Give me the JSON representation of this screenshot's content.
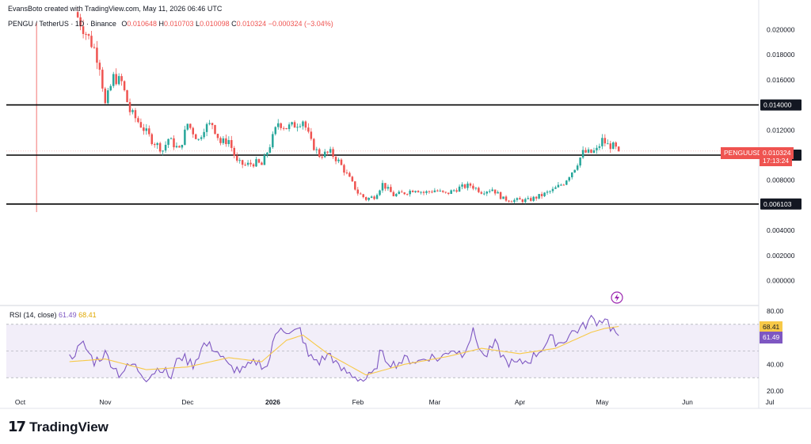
{
  "header": {
    "credit": "EvansBoto created with TradingView.com, May 11, 2026 06:46 UTC",
    "symbol": "PENGU / TetherUS · 1D · Binance",
    "o_label": "O",
    "o_value": "0.010648",
    "h_label": "H",
    "h_value": "0.010703",
    "l_label": "L",
    "l_value": "0.010098",
    "c_label": "C",
    "c_value": "0.010324",
    "change": "−0.000324 (−3.04%)"
  },
  "price_tag": {
    "symbol": "PENGUUSDT",
    "price": "0.010324",
    "countdown": "17:13:24"
  },
  "rsi": {
    "label": "RSI (14, close)",
    "value": "61.49",
    "ma_value": "68.41"
  },
  "brand": {
    "name": "TradingView"
  },
  "colors": {
    "up": "#26a69a",
    "down": "#ef5350",
    "rsi": "#7e57c2",
    "rsi_ma": "#f7c948",
    "level": "#000000"
  },
  "chart_data": [
    {
      "type": "candlestick",
      "x_tick_labels": [
        "Oct",
        "Nov",
        "Dec",
        "2026",
        "Feb",
        "Mar",
        "Apr",
        "May",
        "Jun",
        "Jul"
      ],
      "y_tick_labels": [
        "0.020000",
        "0.018000",
        "0.016000",
        "0.014000",
        "0.012000",
        "0.010000",
        "0.008000",
        "0.006103",
        "0.004000",
        "0.002000",
        "0.000000"
      ],
      "ylim": [
        -0.0006,
        0.0206
      ],
      "horizontal_levels": [
        "0.014000",
        "0.010000",
        "0.006103"
      ],
      "current_price": 0.010324,
      "anchors": [
        [
          "2025-10-26",
          0.021
        ],
        [
          "2025-11-01",
          0.0185
        ],
        [
          "2025-11-03",
          0.0172
        ],
        [
          "2025-11-05",
          0.014
        ],
        [
          "2025-11-08",
          0.0162
        ],
        [
          "2025-11-11",
          0.0158
        ],
        [
          "2025-11-14",
          0.0135
        ],
        [
          "2025-11-18",
          0.0124
        ],
        [
          "2025-11-22",
          0.0112
        ],
        [
          "2025-11-26",
          0.0104
        ],
        [
          "2025-11-28",
          0.0113
        ],
        [
          "2025-12-02",
          0.0104
        ],
        [
          "2025-12-05",
          0.0125
        ],
        [
          "2025-12-09",
          0.0112
        ],
        [
          "2025-12-11",
          0.0122
        ],
        [
          "2025-12-14",
          0.0125
        ],
        [
          "2025-12-17",
          0.011
        ],
        [
          "2025-12-20",
          0.0112
        ],
        [
          "2025-12-23",
          0.0094
        ],
        [
          "2025-12-26",
          0.0092
        ],
        [
          "2025-12-30",
          0.0094
        ],
        [
          "2026-01-01",
          0.0092
        ],
        [
          "2026-01-04",
          0.0108
        ],
        [
          "2026-01-07",
          0.0126
        ],
        [
          "2026-01-10",
          0.0122
        ],
        [
          "2026-01-13",
          0.0124
        ],
        [
          "2026-01-16",
          0.0128
        ],
        [
          "2026-01-19",
          0.011
        ],
        [
          "2026-01-22",
          0.01
        ],
        [
          "2026-01-26",
          0.0102
        ],
        [
          "2026-01-29",
          0.0095
        ],
        [
          "2026-02-02",
          0.0081
        ],
        [
          "2026-02-05",
          0.007
        ],
        [
          "2026-02-08",
          0.0065
        ],
        [
          "2026-02-11",
          0.0067
        ],
        [
          "2026-02-14",
          0.0077
        ],
        [
          "2026-02-18",
          0.0068
        ],
        [
          "2026-02-22",
          0.007
        ],
        [
          "2026-02-26",
          0.0073
        ],
        [
          "2026-03-01",
          0.007
        ],
        [
          "2026-03-05",
          0.0072
        ],
        [
          "2026-03-09",
          0.0069
        ],
        [
          "2026-03-14",
          0.0074
        ],
        [
          "2026-03-18",
          0.0076
        ],
        [
          "2026-03-22",
          0.0071
        ],
        [
          "2026-03-26",
          0.0073
        ],
        [
          "2026-03-30",
          0.0065
        ],
        [
          "2026-04-03",
          0.0064
        ],
        [
          "2026-04-08",
          0.0064
        ],
        [
          "2026-04-13",
          0.0068
        ],
        [
          "2026-04-17",
          0.0072
        ],
        [
          "2026-04-21",
          0.0078
        ],
        [
          "2026-04-25",
          0.009
        ],
        [
          "2026-04-28",
          0.0102
        ],
        [
          "2026-05-01",
          0.0102
        ],
        [
          "2026-05-03",
          0.0104
        ],
        [
          "2026-05-05",
          0.0112
        ],
        [
          "2026-05-07",
          0.0108
        ],
        [
          "2026-05-09",
          0.0107
        ],
        [
          "2026-05-11",
          0.0103
        ]
      ]
    },
    {
      "type": "line",
      "name": "RSI (14, close)",
      "y_tick_labels": [
        "80.00",
        "40.00",
        "20.00"
      ],
      "ylim": [
        20,
        80
      ],
      "band": [
        30,
        70
      ],
      "rsi_last": 61.49,
      "ma_last": 68.41,
      "rsi_anchors": [
        [
          "2025-10-23",
          45
        ],
        [
          "2025-10-28",
          55
        ],
        [
          "2025-11-01",
          42
        ],
        [
          "2025-11-05",
          48
        ],
        [
          "2025-11-10",
          33
        ],
        [
          "2025-11-15",
          40
        ],
        [
          "2025-11-20",
          30
        ],
        [
          "2025-11-25",
          38
        ],
        [
          "2025-11-29",
          30
        ],
        [
          "2025-12-02",
          47
        ],
        [
          "2025-12-07",
          40
        ],
        [
          "2025-12-11",
          55
        ],
        [
          "2025-12-15",
          52
        ],
        [
          "2025-12-20",
          38
        ],
        [
          "2025-12-25",
          35
        ],
        [
          "2025-12-30",
          42
        ],
        [
          "2026-01-03",
          38
        ],
        [
          "2026-01-06",
          62
        ],
        [
          "2026-01-08",
          70
        ],
        [
          "2026-01-11",
          62
        ],
        [
          "2026-01-15",
          66
        ],
        [
          "2026-01-18",
          46
        ],
        [
          "2026-01-22",
          42
        ],
        [
          "2026-01-26",
          48
        ],
        [
          "2026-01-29",
          37
        ],
        [
          "2026-02-03",
          32
        ],
        [
          "2026-02-07",
          28
        ],
        [
          "2026-02-11",
          33
        ],
        [
          "2026-02-13",
          48
        ],
        [
          "2026-02-18",
          40
        ],
        [
          "2026-02-23",
          44
        ],
        [
          "2026-02-27",
          42
        ],
        [
          "2026-03-03",
          46
        ],
        [
          "2026-03-07",
          44
        ],
        [
          "2026-03-11",
          52
        ],
        [
          "2026-03-15",
          48
        ],
        [
          "2026-03-19",
          64
        ],
        [
          "2026-03-23",
          45
        ],
        [
          "2026-03-27",
          55
        ],
        [
          "2026-03-31",
          42
        ],
        [
          "2026-04-04",
          40
        ],
        [
          "2026-04-09",
          44
        ],
        [
          "2026-04-12",
          50
        ],
        [
          "2026-04-16",
          59
        ],
        [
          "2026-04-20",
          56
        ],
        [
          "2026-04-24",
          64
        ],
        [
          "2026-04-28",
          68
        ],
        [
          "2026-05-01",
          74
        ],
        [
          "2026-05-04",
          72
        ],
        [
          "2026-05-06",
          76
        ],
        [
          "2026-05-08",
          68
        ],
        [
          "2026-05-11",
          61.5
        ]
      ],
      "ma_anchors": [
        [
          "2025-10-23",
          42
        ],
        [
          "2025-11-05",
          44
        ],
        [
          "2025-11-20",
          36
        ],
        [
          "2025-12-05",
          38
        ],
        [
          "2025-12-20",
          45
        ],
        [
          "2026-01-01",
          42
        ],
        [
          "2026-01-10",
          58
        ],
        [
          "2026-01-16",
          62
        ],
        [
          "2026-01-25",
          48
        ],
        [
          "2026-02-08",
          32
        ],
        [
          "2026-02-22",
          40
        ],
        [
          "2026-03-10",
          46
        ],
        [
          "2026-03-22",
          52
        ],
        [
          "2026-04-05",
          48
        ],
        [
          "2026-04-18",
          52
        ],
        [
          "2026-05-01",
          64
        ],
        [
          "2026-05-06",
          67
        ],
        [
          "2026-05-11",
          68.41
        ]
      ]
    }
  ]
}
